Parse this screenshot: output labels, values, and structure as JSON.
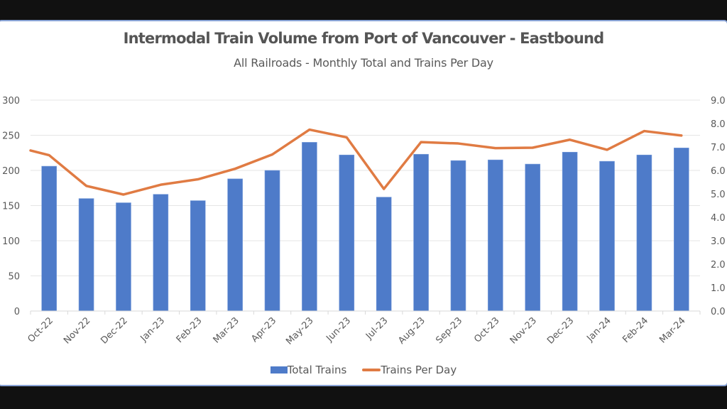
{
  "chart_data": {
    "type": "bar",
    "title": "Intermodal Train Volume from Port of Vancouver - Eastbound",
    "subtitle": "All Railroads - Monthly Total and Trains Per Day",
    "categories": [
      "Oct-22",
      "Nov-22",
      "Dec-22",
      "Jan-23",
      "Feb-23",
      "Mar-23",
      "Apr-23",
      "May-23",
      "Jun-23",
      "Jul-23",
      "Aug-23",
      "Sep-23",
      "Oct-23",
      "Nov-23",
      "Dec-23",
      "Jan-24",
      "Feb-24",
      "Mar-24"
    ],
    "series": [
      {
        "name": "Total Trains",
        "type": "bar",
        "axis": "left",
        "color": "#4e7bc9",
        "values": [
          206,
          160,
          154,
          166,
          157,
          188,
          200,
          240,
          222,
          162,
          223,
          214,
          215,
          209,
          226,
          213,
          222,
          232
        ]
      },
      {
        "name": "Trains Per Day",
        "type": "line",
        "axis": "right",
        "color": "#e07b43",
        "leading_value": 6.85,
        "values": [
          6.65,
          5.34,
          4.97,
          5.39,
          5.62,
          6.07,
          6.68,
          7.74,
          7.41,
          5.21,
          7.21,
          7.15,
          6.95,
          6.97,
          7.31,
          6.88,
          7.68,
          7.49
        ]
      }
    ],
    "xlabel": "",
    "ylabel": "",
    "y_left": {
      "lim": [
        0,
        300
      ],
      "ticks": [
        "0",
        "50",
        "100",
        "150",
        "200",
        "250",
        "300"
      ],
      "tick_values": [
        0,
        50,
        100,
        150,
        200,
        250,
        300
      ]
    },
    "y_right": {
      "lim": [
        0,
        9
      ],
      "ticks": [
        "0.0",
        "1.0",
        "2.0",
        "3.0",
        "4.0",
        "5.0",
        "6.0",
        "7.0",
        "8.0",
        "9.0"
      ],
      "tick_values": [
        0,
        1,
        2,
        3,
        4,
        5,
        6,
        7,
        8,
        9
      ]
    },
    "grid": true,
    "legend_position": "bottom"
  }
}
